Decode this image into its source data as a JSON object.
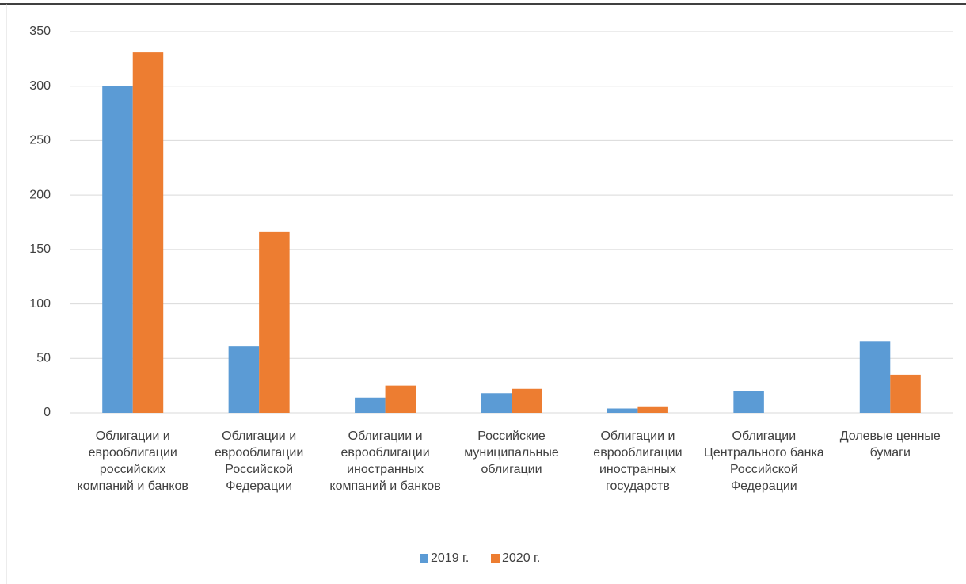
{
  "chart_data": {
    "type": "bar",
    "categories": [
      "Облигации и еврооблигации российских компаний и банков",
      "Облигации и еврооблигации Российской Федерации",
      "Облигации и еврооблигации иностранных компаний и банков",
      "Российские муниципальные облигации",
      "Облигации и еврооблигации иностранных государств",
      "Облигации Центрального банка Российской Федерации",
      "Долевые ценные бумаги"
    ],
    "series": [
      {
        "name": "2019 г.",
        "color": "#5b9bd5",
        "values": [
          300,
          61,
          14,
          18,
          4,
          20,
          66
        ]
      },
      {
        "name": "2020 г.",
        "color": "#ed7d31",
        "values": [
          331,
          166,
          25,
          22,
          6,
          null,
          35
        ]
      }
    ],
    "ylim": [
      0,
      350
    ],
    "yticks": [
      0,
      50,
      100,
      150,
      200,
      250,
      300,
      350
    ],
    "grid": true,
    "legend": "bottom"
  }
}
